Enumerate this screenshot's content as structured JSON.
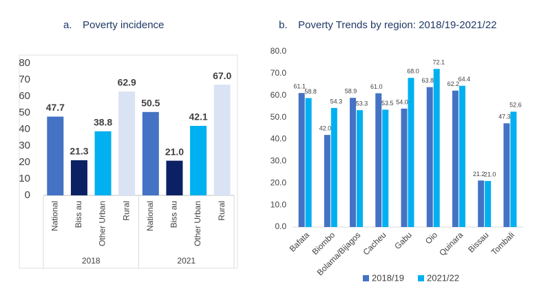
{
  "chart_data": [
    {
      "type": "grouped-colored-bar",
      "panel": "a.",
      "title": "Poverty incidence",
      "categories": [
        "National",
        "Biss au",
        "Other Urban",
        "Rural"
      ],
      "colors": [
        "#4472c4",
        "#0b2163",
        "#00b0f0",
        "#dae3f3"
      ],
      "series": [
        {
          "name": "2018",
          "values": [
            47.7,
            21.3,
            38.8,
            62.9
          ],
          "value_labels": [
            "47.7",
            "21.3",
            "38.8",
            "62.9"
          ]
        },
        {
          "name": "2021",
          "values": [
            50.5,
            21.0,
            42.1,
            67.0
          ],
          "value_labels": [
            "50.5",
            "21.0",
            "42.1",
            "67.0"
          ]
        }
      ],
      "ylim": [
        0,
        80
      ],
      "yticks": [
        0,
        10,
        20,
        30,
        40,
        50,
        60,
        70,
        80
      ],
      "grid": false
    },
    {
      "type": "bar",
      "panel": "b.",
      "title": "Poverty Trends by region: 2018/19-2021/22",
      "categories": [
        "Bafata",
        "Biombo",
        "Bolama/Bijagos",
        "Cacheu",
        "Gabu",
        "Oio",
        "Quinara",
        "Bissau",
        "Tombali"
      ],
      "series": [
        {
          "name": "2018/19",
          "color": "#4472c4",
          "values": [
            61.1,
            42.0,
            58.9,
            61.0,
            54.0,
            63.8,
            62.2,
            21.2,
            47.3
          ],
          "value_labels": [
            "61.1",
            "42.0",
            "58.9",
            "61.0",
            "54.0",
            "63.8",
            "62.2",
            "21.2",
            "47.3"
          ]
        },
        {
          "name": "2021/22",
          "color": "#00b0f0",
          "values": [
            58.8,
            54.3,
            53.3,
            53.5,
            68.0,
            72.1,
            64.4,
            21.0,
            52.6
          ],
          "value_labels": [
            "58.8",
            "54.3",
            "53.3",
            "53.5",
            "68.0",
            "72.1",
            "64.4",
            "21.0",
            "52.6"
          ]
        }
      ],
      "ylim": [
        0,
        80
      ],
      "yticks": [
        {
          "value": 0,
          "label": "0.0"
        },
        {
          "value": 10,
          "label": "10.0"
        },
        {
          "value": 20,
          "label": "20.0"
        },
        {
          "value": 30,
          "label": "30.0"
        },
        {
          "value": 40,
          "label": "40.0"
        },
        {
          "value": 50,
          "label": "50.0"
        },
        {
          "value": 60,
          "label": "60.0"
        },
        {
          "value": 70,
          "label": "70.0"
        },
        {
          "value": 80,
          "label": "80.0"
        }
      ],
      "grid": false,
      "legend": "bottom"
    }
  ]
}
